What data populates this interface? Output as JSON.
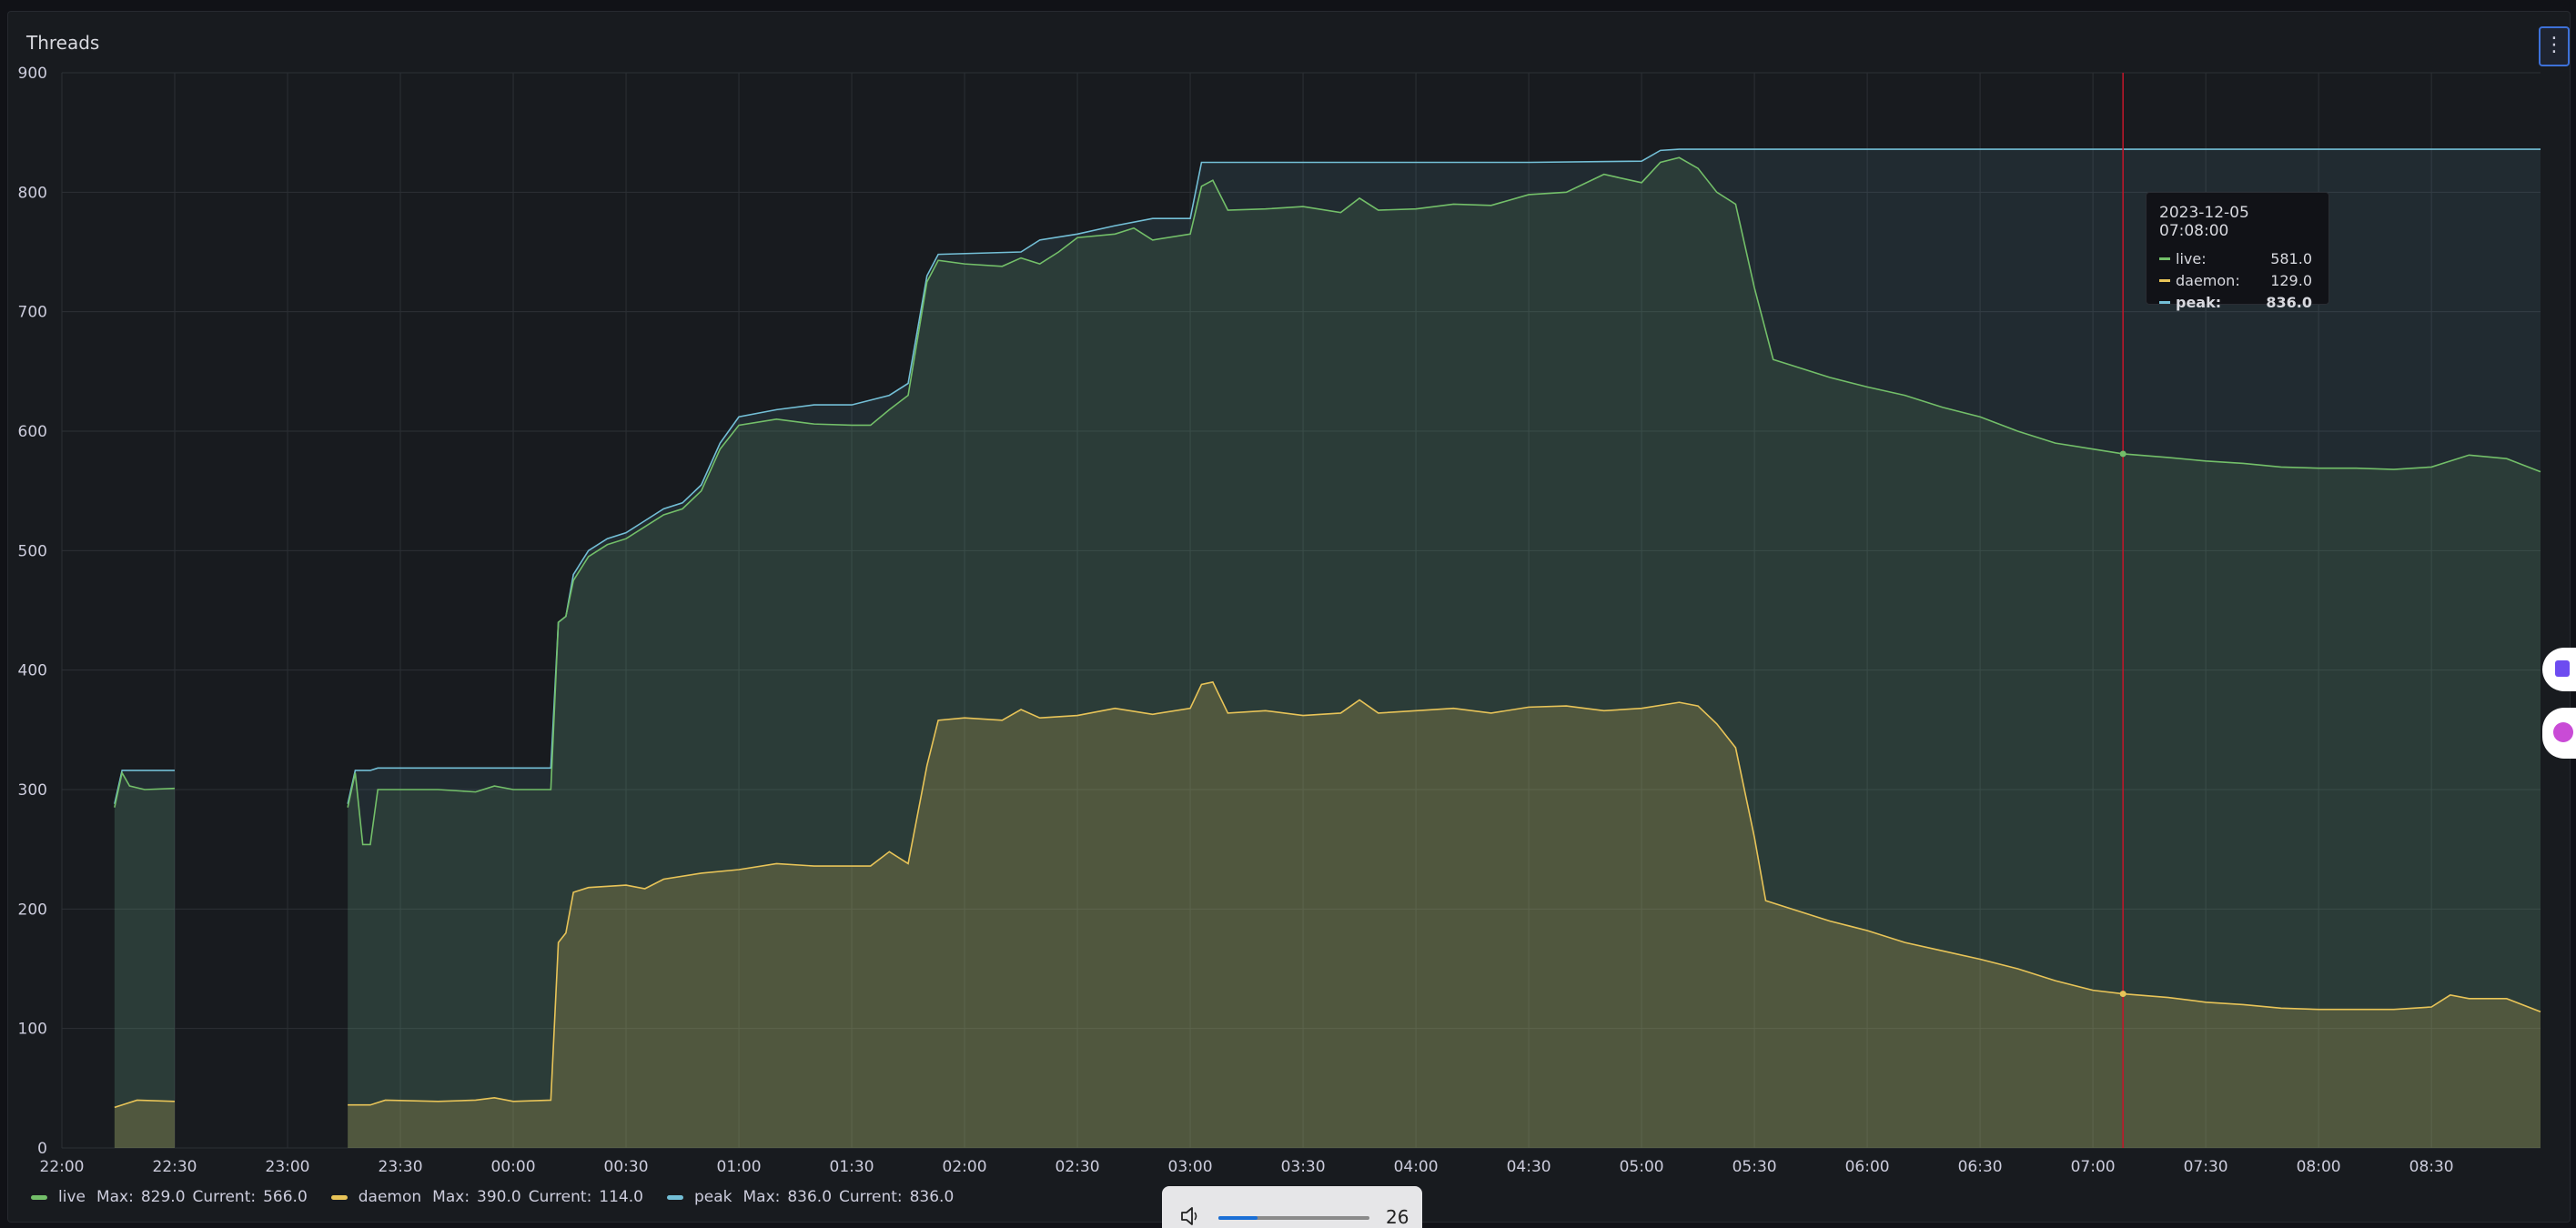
{
  "panel": {
    "title": "Threads",
    "menu_icon": "more-vertical-icon"
  },
  "chart_data": {
    "type": "area",
    "ylim": [
      0,
      900
    ],
    "yticks": [
      0,
      100,
      200,
      300,
      400,
      500,
      600,
      700,
      800,
      900
    ],
    "xlim": [
      "2023-12-04 22:00",
      "2023-12-05 08:59"
    ],
    "xtick_labels": [
      "22:00",
      "22:30",
      "23:00",
      "23:30",
      "00:00",
      "00:30",
      "01:00",
      "01:30",
      "02:00",
      "02:30",
      "03:00",
      "03:30",
      "04:00",
      "04:30",
      "05:00",
      "05:30",
      "06:00",
      "06:30",
      "07:00",
      "07:30",
      "08:00",
      "08:30"
    ],
    "grid": true,
    "legend_position": "bottom-left",
    "series": [
      {
        "name": "peak",
        "color": "#73bfd6",
        "points": [
          [
            "2023-12-04 22:14",
            288
          ],
          [
            "2023-12-04 22:16",
            316
          ],
          [
            "2023-12-04 22:30",
            316
          ],
          [
            "2023-12-04 22:30",
            null
          ],
          [
            "2023-12-04 23:16",
            288
          ],
          [
            "2023-12-04 23:18",
            316
          ],
          [
            "2023-12-04 23:22",
            316
          ],
          [
            "2023-12-04 23:24",
            318
          ],
          [
            "2023-12-05 00:10",
            318
          ],
          [
            "2023-12-05 00:12",
            440
          ],
          [
            "2023-12-05 00:14",
            445
          ],
          [
            "2023-12-05 00:16",
            480
          ],
          [
            "2023-12-05 00:20",
            500
          ],
          [
            "2023-12-05 00:25",
            510
          ],
          [
            "2023-12-05 00:30",
            515
          ],
          [
            "2023-12-05 00:35",
            525
          ],
          [
            "2023-12-05 00:40",
            535
          ],
          [
            "2023-12-05 00:45",
            540
          ],
          [
            "2023-12-05 00:50",
            555
          ],
          [
            "2023-12-05 00:55",
            590
          ],
          [
            "2023-12-05 01:00",
            612
          ],
          [
            "2023-12-05 01:10",
            618
          ],
          [
            "2023-12-05 01:20",
            622
          ],
          [
            "2023-12-05 01:30",
            622
          ],
          [
            "2023-12-05 01:40",
            630
          ],
          [
            "2023-12-05 01:45",
            640
          ],
          [
            "2023-12-05 01:50",
            730
          ],
          [
            "2023-12-05 01:53",
            748
          ],
          [
            "2023-12-05 02:15",
            750
          ],
          [
            "2023-12-05 02:20",
            760
          ],
          [
            "2023-12-05 02:30",
            765
          ],
          [
            "2023-12-05 02:40",
            772
          ],
          [
            "2023-12-05 02:50",
            778
          ],
          [
            "2023-12-05 03:00",
            778
          ],
          [
            "2023-12-05 03:03",
            825
          ],
          [
            "2023-12-05 03:30",
            825
          ],
          [
            "2023-12-05 04:00",
            825
          ],
          [
            "2023-12-05 04:30",
            825
          ],
          [
            "2023-12-05 05:00",
            826
          ],
          [
            "2023-12-05 05:05",
            835
          ],
          [
            "2023-12-05 05:10",
            836
          ],
          [
            "2023-12-05 06:00",
            836
          ],
          [
            "2023-12-05 07:00",
            836
          ],
          [
            "2023-12-05 08:00",
            836
          ],
          [
            "2023-12-05 08:59",
            836
          ]
        ]
      },
      {
        "name": "live",
        "color": "#73bf69",
        "points": [
          [
            "2023-12-04 22:14",
            285
          ],
          [
            "2023-12-04 22:16",
            314
          ],
          [
            "2023-12-04 22:18",
            303
          ],
          [
            "2023-12-04 22:22",
            300
          ],
          [
            "2023-12-04 22:30",
            301
          ],
          [
            "2023-12-04 22:30",
            null
          ],
          [
            "2023-12-04 23:16",
            285
          ],
          [
            "2023-12-04 23:18",
            314
          ],
          [
            "2023-12-04 23:20",
            254
          ],
          [
            "2023-12-04 23:22",
            254
          ],
          [
            "2023-12-04 23:24",
            300
          ],
          [
            "2023-12-04 23:40",
            300
          ],
          [
            "2023-12-04 23:50",
            298
          ],
          [
            "2023-12-04 23:55",
            303
          ],
          [
            "2023-12-05 00:00",
            300
          ],
          [
            "2023-12-05 00:10",
            300
          ],
          [
            "2023-12-05 00:12",
            440
          ],
          [
            "2023-12-05 00:14",
            445
          ],
          [
            "2023-12-05 00:16",
            475
          ],
          [
            "2023-12-05 00:20",
            495
          ],
          [
            "2023-12-05 00:25",
            505
          ],
          [
            "2023-12-05 00:30",
            510
          ],
          [
            "2023-12-05 00:35",
            520
          ],
          [
            "2023-12-05 00:40",
            530
          ],
          [
            "2023-12-05 00:45",
            535
          ],
          [
            "2023-12-05 00:50",
            550
          ],
          [
            "2023-12-05 00:55",
            585
          ],
          [
            "2023-12-05 01:00",
            605
          ],
          [
            "2023-12-05 01:10",
            610
          ],
          [
            "2023-12-05 01:20",
            606
          ],
          [
            "2023-12-05 01:30",
            605
          ],
          [
            "2023-12-05 01:35",
            605
          ],
          [
            "2023-12-05 01:40",
            618
          ],
          [
            "2023-12-05 01:45",
            630
          ],
          [
            "2023-12-05 01:50",
            725
          ],
          [
            "2023-12-05 01:53",
            743
          ],
          [
            "2023-12-05 02:00",
            740
          ],
          [
            "2023-12-05 02:10",
            738
          ],
          [
            "2023-12-05 02:15",
            745
          ],
          [
            "2023-12-05 02:20",
            740
          ],
          [
            "2023-12-05 02:25",
            750
          ],
          [
            "2023-12-05 02:30",
            762
          ],
          [
            "2023-12-05 02:40",
            765
          ],
          [
            "2023-12-05 02:45",
            770
          ],
          [
            "2023-12-05 02:50",
            760
          ],
          [
            "2023-12-05 03:00",
            765
          ],
          [
            "2023-12-05 03:03",
            805
          ],
          [
            "2023-12-05 03:06",
            810
          ],
          [
            "2023-12-05 03:10",
            785
          ],
          [
            "2023-12-05 03:20",
            786
          ],
          [
            "2023-12-05 03:30",
            788
          ],
          [
            "2023-12-05 03:40",
            783
          ],
          [
            "2023-12-05 03:45",
            795
          ],
          [
            "2023-12-05 03:50",
            785
          ],
          [
            "2023-12-05 04:00",
            786
          ],
          [
            "2023-12-05 04:10",
            790
          ],
          [
            "2023-12-05 04:20",
            789
          ],
          [
            "2023-12-05 04:30",
            798
          ],
          [
            "2023-12-05 04:40",
            800
          ],
          [
            "2023-12-05 04:50",
            815
          ],
          [
            "2023-12-05 05:00",
            808
          ],
          [
            "2023-12-05 05:05",
            825
          ],
          [
            "2023-12-05 05:10",
            829
          ],
          [
            "2023-12-05 05:15",
            820
          ],
          [
            "2023-12-05 05:20",
            800
          ],
          [
            "2023-12-05 05:25",
            790
          ],
          [
            "2023-12-05 05:30",
            720
          ],
          [
            "2023-12-05 05:35",
            660
          ],
          [
            "2023-12-05 05:40",
            655
          ],
          [
            "2023-12-05 05:50",
            645
          ],
          [
            "2023-12-05 06:00",
            637
          ],
          [
            "2023-12-05 06:10",
            630
          ],
          [
            "2023-12-05 06:20",
            620
          ],
          [
            "2023-12-05 06:30",
            612
          ],
          [
            "2023-12-05 06:40",
            600
          ],
          [
            "2023-12-05 06:50",
            590
          ],
          [
            "2023-12-05 07:00",
            585
          ],
          [
            "2023-12-05 07:08",
            581
          ],
          [
            "2023-12-05 07:20",
            578
          ],
          [
            "2023-12-05 07:30",
            575
          ],
          [
            "2023-12-05 07:40",
            573
          ],
          [
            "2023-12-05 07:50",
            570
          ],
          [
            "2023-12-05 08:00",
            569
          ],
          [
            "2023-12-05 08:10",
            569
          ],
          [
            "2023-12-05 08:20",
            568
          ],
          [
            "2023-12-05 08:30",
            570
          ],
          [
            "2023-12-05 08:40",
            580
          ],
          [
            "2023-12-05 08:50",
            577
          ],
          [
            "2023-12-05 08:59",
            566
          ]
        ]
      },
      {
        "name": "daemon",
        "color": "#e8c458",
        "points": [
          [
            "2023-12-04 22:14",
            34
          ],
          [
            "2023-12-04 22:16",
            36
          ],
          [
            "2023-12-04 22:20",
            40
          ],
          [
            "2023-12-04 22:30",
            39
          ],
          [
            "2023-12-04 22:30",
            null
          ],
          [
            "2023-12-04 23:16",
            36
          ],
          [
            "2023-12-04 23:22",
            36
          ],
          [
            "2023-12-04 23:26",
            40
          ],
          [
            "2023-12-04 23:40",
            39
          ],
          [
            "2023-12-04 23:50",
            40
          ],
          [
            "2023-12-04 23:55",
            42
          ],
          [
            "2023-12-05 00:00",
            39
          ],
          [
            "2023-12-05 00:10",
            40
          ],
          [
            "2023-12-05 00:12",
            172
          ],
          [
            "2023-12-05 00:14",
            180
          ],
          [
            "2023-12-05 00:16",
            214
          ],
          [
            "2023-12-05 00:20",
            218
          ],
          [
            "2023-12-05 00:30",
            220
          ],
          [
            "2023-12-05 00:35",
            217
          ],
          [
            "2023-12-05 00:40",
            225
          ],
          [
            "2023-12-05 00:50",
            230
          ],
          [
            "2023-12-05 01:00",
            233
          ],
          [
            "2023-12-05 01:10",
            238
          ],
          [
            "2023-12-05 01:20",
            236
          ],
          [
            "2023-12-05 01:30",
            236
          ],
          [
            "2023-12-05 01:35",
            236
          ],
          [
            "2023-12-05 01:40",
            248
          ],
          [
            "2023-12-05 01:45",
            238
          ],
          [
            "2023-12-05 01:50",
            320
          ],
          [
            "2023-12-05 01:53",
            358
          ],
          [
            "2023-12-05 02:00",
            360
          ],
          [
            "2023-12-05 02:10",
            358
          ],
          [
            "2023-12-05 02:15",
            367
          ],
          [
            "2023-12-05 02:20",
            360
          ],
          [
            "2023-12-05 02:30",
            362
          ],
          [
            "2023-12-05 02:40",
            368
          ],
          [
            "2023-12-05 02:50",
            363
          ],
          [
            "2023-12-05 03:00",
            368
          ],
          [
            "2023-12-05 03:03",
            388
          ],
          [
            "2023-12-05 03:06",
            390
          ],
          [
            "2023-12-05 03:10",
            364
          ],
          [
            "2023-12-05 03:20",
            366
          ],
          [
            "2023-12-05 03:30",
            362
          ],
          [
            "2023-12-05 03:40",
            364
          ],
          [
            "2023-12-05 03:45",
            375
          ],
          [
            "2023-12-05 03:50",
            364
          ],
          [
            "2023-12-05 04:00",
            366
          ],
          [
            "2023-12-05 04:10",
            368
          ],
          [
            "2023-12-05 04:20",
            364
          ],
          [
            "2023-12-05 04:30",
            369
          ],
          [
            "2023-12-05 04:40",
            370
          ],
          [
            "2023-12-05 04:50",
            366
          ],
          [
            "2023-12-05 05:00",
            368
          ],
          [
            "2023-12-05 05:10",
            373
          ],
          [
            "2023-12-05 05:15",
            370
          ],
          [
            "2023-12-05 05:20",
            355
          ],
          [
            "2023-12-05 05:25",
            335
          ],
          [
            "2023-12-05 05:30",
            260
          ],
          [
            "2023-12-05 05:33",
            207
          ],
          [
            "2023-12-05 05:40",
            200
          ],
          [
            "2023-12-05 05:50",
            190
          ],
          [
            "2023-12-05 06:00",
            182
          ],
          [
            "2023-12-05 06:10",
            172
          ],
          [
            "2023-12-05 06:20",
            165
          ],
          [
            "2023-12-05 06:30",
            158
          ],
          [
            "2023-12-05 06:40",
            150
          ],
          [
            "2023-12-05 06:50",
            140
          ],
          [
            "2023-12-05 07:00",
            132
          ],
          [
            "2023-12-05 07:08",
            129
          ],
          [
            "2023-12-05 07:20",
            126
          ],
          [
            "2023-12-05 07:30",
            122
          ],
          [
            "2023-12-05 07:40",
            120
          ],
          [
            "2023-12-05 07:50",
            117
          ],
          [
            "2023-12-05 08:00",
            116
          ],
          [
            "2023-12-05 08:10",
            116
          ],
          [
            "2023-12-05 08:20",
            116
          ],
          [
            "2023-12-05 08:30",
            118
          ],
          [
            "2023-12-05 08:35",
            128
          ],
          [
            "2023-12-05 08:40",
            125
          ],
          [
            "2023-12-05 08:50",
            125
          ],
          [
            "2023-12-05 08:59",
            114
          ]
        ]
      }
    ],
    "crosshair_time": "2023-12-05 07:08"
  },
  "legend": [
    {
      "name": "live",
      "color": "#73bf69",
      "max_label": "Max:",
      "max": "829.0",
      "current_label": "Current:",
      "current": "566.0"
    },
    {
      "name": "daemon",
      "color": "#e8c458",
      "max_label": "Max:",
      "max": "390.0",
      "current_label": "Current:",
      "current": "114.0"
    },
    {
      "name": "peak",
      "color": "#73bfd6",
      "max_label": "Max:",
      "max": "836.0",
      "current_label": "Current:",
      "current": "836.0"
    }
  ],
  "tooltip": {
    "time": "2023-12-05 07:08:00",
    "rows": [
      {
        "name": "live:",
        "value": "581.0",
        "color": "#73bf69"
      },
      {
        "name": "daemon:",
        "value": "129.0",
        "color": "#e8c458"
      },
      {
        "name": "peak:",
        "value": "836.0",
        "color": "#73bfd6"
      }
    ]
  },
  "volume": {
    "icon": "speaker-icon",
    "value": "26",
    "level": 0.26
  }
}
